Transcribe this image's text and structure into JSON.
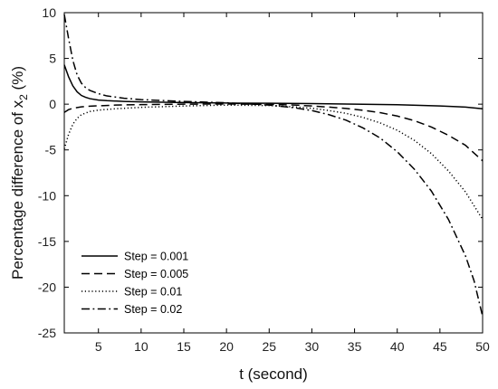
{
  "chart_data": {
    "type": "line",
    "title": "",
    "xlabel": "t (second)",
    "ylabel": {
      "prefix": "Percentage difference of x",
      "subscript": "2",
      "suffix": " (%)"
    },
    "xlim": [
      1,
      50
    ],
    "ylim": [
      -25,
      10
    ],
    "xticks": [
      5,
      10,
      15,
      20,
      25,
      30,
      35,
      40,
      45,
      50
    ],
    "yticks": [
      10,
      5,
      0,
      -5,
      -10,
      -15,
      -20,
      -25
    ],
    "grid": false,
    "legend_position": "bottom-left",
    "series": [
      {
        "name": "Step = 0.001",
        "style": "solid",
        "x": [
          1,
          1.5,
          2,
          2.5,
          3,
          3.5,
          4,
          5,
          6,
          8,
          10,
          15,
          20,
          25,
          30,
          35,
          40,
          45,
          48,
          50
        ],
        "y": [
          4.3,
          3.0,
          2.0,
          1.35,
          0.95,
          0.75,
          0.6,
          0.45,
          0.38,
          0.3,
          0.25,
          0.18,
          0.12,
          0.1,
          0.06,
          0.0,
          -0.06,
          -0.2,
          -0.32,
          -0.5
        ]
      },
      {
        "name": "Step = 0.005",
        "style": "dashed",
        "x": [
          1,
          1.5,
          2,
          3,
          4,
          5,
          7,
          10,
          15,
          20,
          25,
          28,
          30,
          32,
          34,
          36,
          38,
          40,
          42,
          44,
          46,
          48,
          50
        ],
        "y": [
          -0.9,
          -0.6,
          -0.45,
          -0.3,
          -0.22,
          -0.18,
          -0.1,
          -0.05,
          0.0,
          0.02,
          -0.02,
          -0.1,
          -0.2,
          -0.32,
          -0.47,
          -0.67,
          -0.93,
          -1.3,
          -1.8,
          -2.5,
          -3.4,
          -4.5,
          -6.2
        ]
      },
      {
        "name": "Step = 0.01",
        "style": "dotted",
        "x": [
          1,
          1.5,
          2,
          2.5,
          3,
          4,
          5,
          7,
          10,
          15,
          20,
          25,
          28,
          30,
          32,
          34,
          36,
          38,
          40,
          42,
          44,
          46,
          48,
          50
        ],
        "y": [
          -4.9,
          -3.3,
          -2.2,
          -1.55,
          -1.15,
          -0.8,
          -0.65,
          -0.5,
          -0.35,
          -0.2,
          -0.1,
          -0.15,
          -0.3,
          -0.45,
          -0.7,
          -1.0,
          -1.45,
          -2.05,
          -2.85,
          -3.95,
          -5.4,
          -7.3,
          -9.6,
          -12.6
        ]
      },
      {
        "name": "Step = 0.02",
        "style": "dashdot",
        "x": [
          1,
          1.5,
          2,
          2.5,
          3,
          3.5,
          4,
          5,
          6,
          8,
          10,
          15,
          20,
          25,
          28,
          30,
          32,
          34,
          36,
          38,
          40,
          42,
          44,
          46,
          48,
          49,
          50
        ],
        "y": [
          9.8,
          7.2,
          4.8,
          3.2,
          2.3,
          1.8,
          1.5,
          1.15,
          0.9,
          0.65,
          0.5,
          0.3,
          0.15,
          -0.1,
          -0.4,
          -0.7,
          -1.15,
          -1.75,
          -2.6,
          -3.7,
          -5.2,
          -7.1,
          -9.5,
          -12.6,
          -16.6,
          -19.3,
          -23.2
        ]
      }
    ]
  }
}
